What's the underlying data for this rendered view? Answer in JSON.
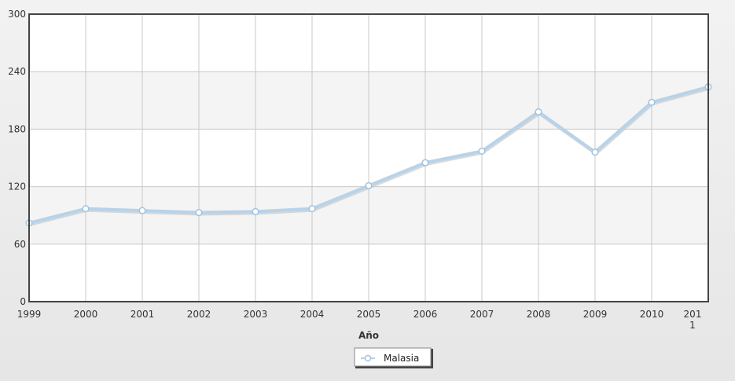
{
  "chart_data": {
    "type": "line",
    "xlabel": "Año",
    "ylabel": "",
    "ylim": [
      0,
      300
    ],
    "y_ticks": [
      "0",
      "60",
      "120",
      "180",
      "240",
      "300"
    ],
    "categories": [
      "1999",
      "2000",
      "2001",
      "2002",
      "2003",
      "2004",
      "2005",
      "2006",
      "2007",
      "2008",
      "2009",
      "2010",
      "2011"
    ],
    "series": [
      {
        "name": "Malasia",
        "values": [
          82,
          97,
          95,
          93,
          94,
          97,
          121,
          145,
          157,
          198,
          156,
          208,
          224
        ]
      }
    ],
    "grid": true,
    "legend_position": "bottom-center",
    "colors": {
      "line": "#b7d3ea",
      "line_shadow": "#c9c9c9",
      "marker_fill": "#ffffff",
      "marker_stroke": "#9fc3e2",
      "band": "#f4f4f4",
      "grid": "#c8c8c8",
      "frame": "#444444",
      "outer_bg": "#ebebeb"
    }
  }
}
